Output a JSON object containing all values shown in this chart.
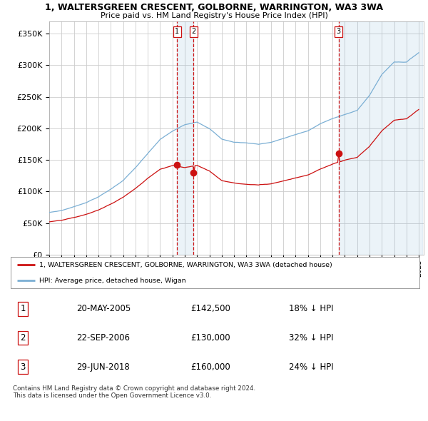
{
  "title": "1, WALTERSGREEN CRESCENT, GOLBORNE, WARRINGTON, WA3 3WA",
  "subtitle": "Price paid vs. HM Land Registry's House Price Index (HPI)",
  "ylim": [
    0,
    370000
  ],
  "yticks": [
    0,
    50000,
    100000,
    150000,
    200000,
    250000,
    300000,
    350000
  ],
  "sale_dates": [
    2005.38,
    2006.72,
    2018.49
  ],
  "sale_prices": [
    142500,
    130000,
    160000
  ],
  "sale_labels": [
    "1",
    "2",
    "3"
  ],
  "legend_red": "1, WALTERSGREEN CRESCENT, GOLBORNE, WARRINGTON, WA3 3WA (detached house)",
  "legend_blue": "HPI: Average price, detached house, Wigan",
  "table_data": [
    [
      "1",
      "20-MAY-2005",
      "£142,500",
      "18% ↓ HPI"
    ],
    [
      "2",
      "22-SEP-2006",
      "£130,000",
      "32% ↓ HPI"
    ],
    [
      "3",
      "29-JUN-2018",
      "£160,000",
      "24% ↓ HPI"
    ]
  ],
  "footer": "Contains HM Land Registry data © Crown copyright and database right 2024.\nThis data is licensed under the Open Government Licence v3.0.",
  "hpi_color": "#7bafd4",
  "price_color": "#cc1111",
  "vline_color": "#cc1111",
  "shade_color": "#ddeeff",
  "bg_color": "#ffffff",
  "grid_color": "#cccccc"
}
